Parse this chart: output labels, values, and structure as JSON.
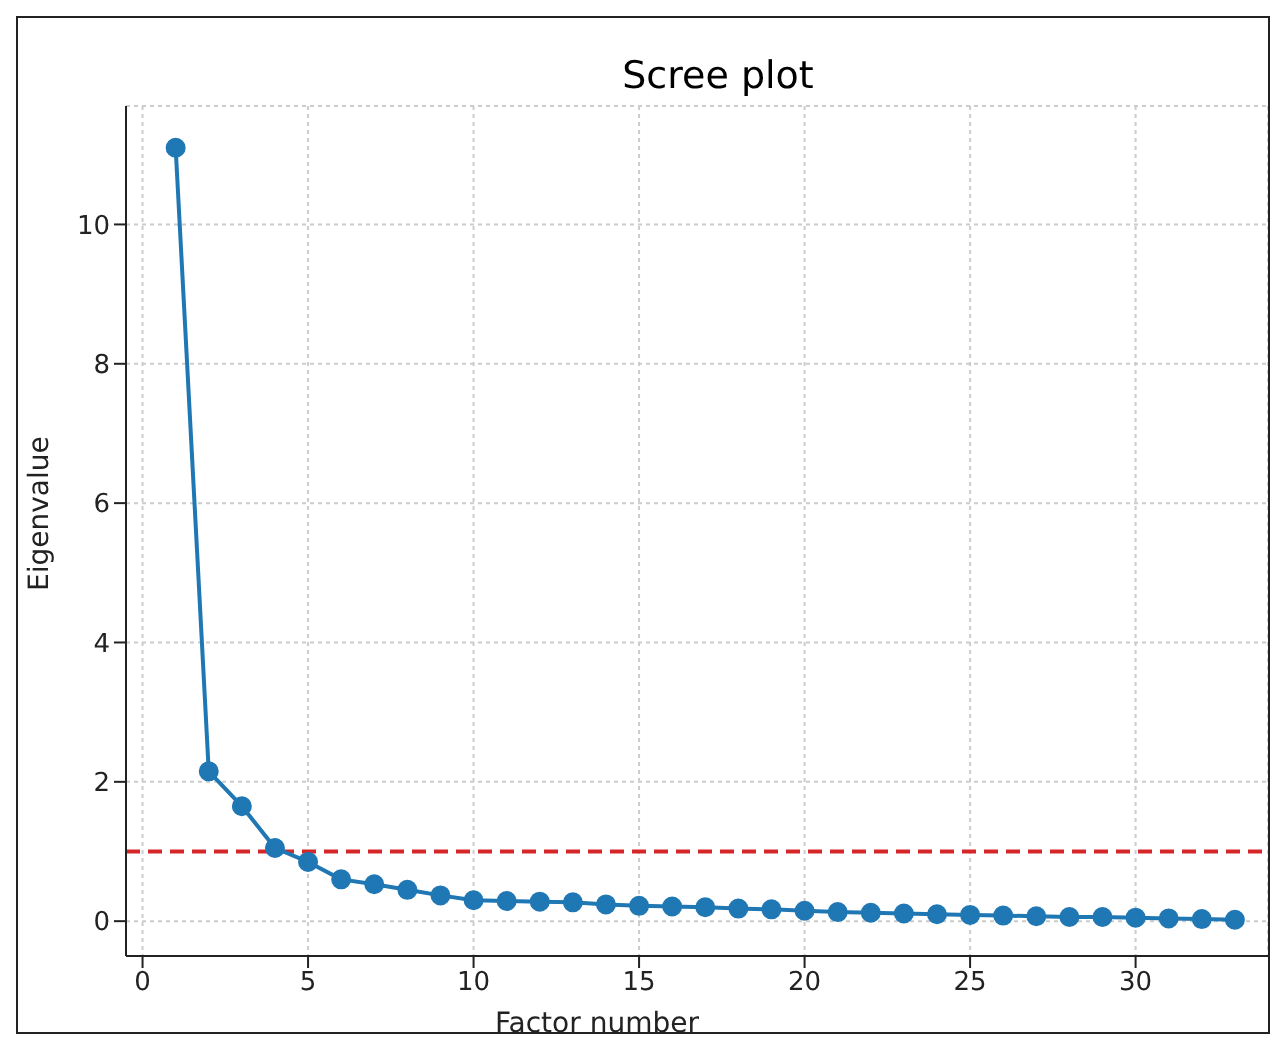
{
  "chart_data": {
    "type": "line",
    "title": "Scree plot",
    "xlabel": "Factor number",
    "ylabel": "Eigenvalue",
    "x": [
      1,
      2,
      3,
      4,
      5,
      6,
      7,
      8,
      9,
      10,
      11,
      12,
      13,
      14,
      15,
      16,
      17,
      18,
      19,
      20,
      21,
      22,
      23,
      24,
      25,
      26,
      27,
      28,
      29,
      30,
      31,
      32,
      33
    ],
    "series": [
      {
        "color": "#1f77b4",
        "values": [
          11.1,
          2.15,
          1.65,
          1.05,
          0.85,
          0.6,
          0.53,
          0.45,
          0.37,
          0.3,
          0.29,
          0.28,
          0.27,
          0.24,
          0.22,
          0.21,
          0.2,
          0.18,
          0.17,
          0.15,
          0.13,
          0.12,
          0.11,
          0.1,
          0.09,
          0.08,
          0.07,
          0.06,
          0.06,
          0.05,
          0.04,
          0.03,
          0.02
        ]
      }
    ],
    "xlim": [
      -0.5,
      34
    ],
    "xticks": [
      0,
      5,
      10,
      15,
      20,
      25,
      30
    ],
    "ylim": [
      -0.5,
      11.7
    ],
    "yticks": [
      0,
      2,
      4,
      6,
      8,
      10
    ],
    "ref_lines": [
      {
        "axis": "y",
        "value": 1,
        "color": "#d62728",
        "line_style": "dashed"
      }
    ],
    "grid": true,
    "marker": "circle",
    "line_style": "solid",
    "legend": false
  }
}
